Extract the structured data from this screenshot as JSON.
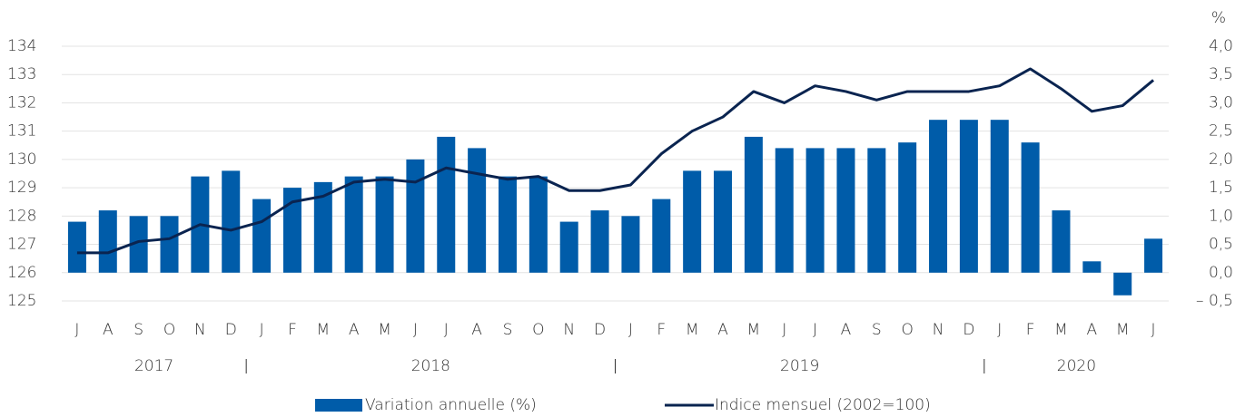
{
  "chart_data": {
    "type": "bar_line",
    "categories": [
      "J",
      "A",
      "S",
      "O",
      "N",
      "D",
      "J",
      "F",
      "M",
      "A",
      "M",
      "J",
      "J",
      "A",
      "S",
      "O",
      "N",
      "D",
      "J",
      "F",
      "M",
      "A",
      "M",
      "J",
      "J",
      "A",
      "S",
      "O",
      "N",
      "D",
      "J",
      "F",
      "M",
      "A",
      "M",
      "J"
    ],
    "years": [
      "2017",
      "2018",
      "2019",
      "2020"
    ],
    "y2_label": "%",
    "series": [
      {
        "name": "Variation annuelle (%)",
        "type": "bar",
        "axis": "y2",
        "color": "#005ca9",
        "values": [
          0.9,
          1.1,
          1.0,
          1.0,
          1.7,
          1.8,
          1.3,
          1.5,
          1.6,
          1.7,
          1.7,
          2.0,
          2.4,
          2.2,
          1.7,
          1.7,
          0.9,
          1.1,
          1.0,
          1.3,
          1.8,
          1.8,
          2.4,
          2.2,
          2.2,
          2.2,
          2.2,
          2.3,
          2.7,
          2.7,
          2.7,
          2.3,
          1.1,
          0.2,
          -0.4,
          0.6
        ]
      },
      {
        "name": "Indice mensuel (2002=100)",
        "type": "line",
        "axis": "y",
        "color": "#0a2450",
        "values": [
          126.7,
          126.7,
          127.1,
          127.2,
          127.7,
          127.5,
          127.8,
          128.5,
          128.7,
          129.2,
          129.3,
          129.2,
          129.7,
          129.5,
          129.3,
          129.4,
          128.9,
          128.9,
          129.1,
          130.2,
          131.0,
          131.5,
          132.4,
          132.0,
          132.6,
          132.4,
          132.1,
          132.4,
          132.4,
          132.4,
          132.6,
          133.2,
          132.5,
          131.7,
          131.9,
          132.8
        ]
      }
    ],
    "ylim": [
      125,
      134
    ],
    "yticks": [
      125,
      126,
      127,
      128,
      129,
      130,
      131,
      132,
      133,
      134
    ],
    "y2lim": [
      -0.5,
      4.0
    ],
    "y2ticks": [
      {
        "value": -0.5,
        "label": "– 0,5"
      },
      {
        "value": 0,
        "label": "0,0"
      },
      {
        "value": 0.5,
        "label": "0,5"
      },
      {
        "value": 1.0,
        "label": "1,0"
      },
      {
        "value": 1.5,
        "label": "1,5"
      },
      {
        "value": 2.0,
        "label": "2,0"
      },
      {
        "value": 2.5,
        "label": "2,5"
      },
      {
        "value": 3.0,
        "label": "3,0"
      },
      {
        "value": 3.5,
        "label": "3,5"
      },
      {
        "value": 4.0,
        "label": "4,0"
      }
    ],
    "grid": true
  }
}
